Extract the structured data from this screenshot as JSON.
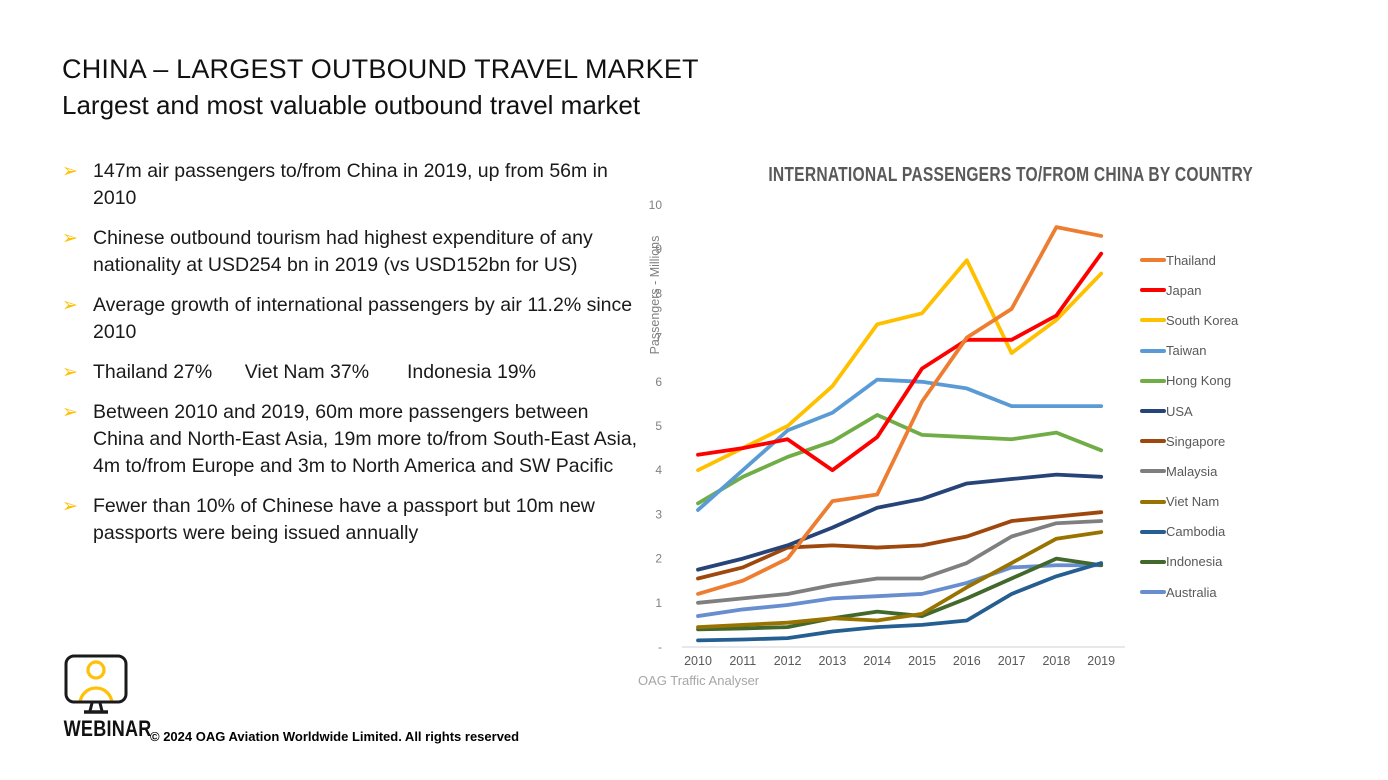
{
  "header": {
    "title": "CHINA – LARGEST OUTBOUND TRAVEL MARKET",
    "subtitle": "Largest and most valuable outbound travel market"
  },
  "bullet_marker": "➢",
  "bullets": [
    "147m air passengers to/from China in 2019, up from 56m in 2010",
    "Chinese outbound tourism had highest expenditure of any nationality at USD254 bn in 2019 (vs USD152bn for US)",
    "Average growth of international passengers by air 11.2% since 2010",
    "Thailand 27%      Viet Nam 37%       Indonesia 19%",
    "Between 2010 and 2019, 60m more passengers between China and North-East Asia, 19m more to/from South-East Asia, 4m to/from Europe and 3m to North America and SW Pacific",
    "Fewer than 10% of Chinese have a passport but 10m new passports were being issued annually"
  ],
  "chart": {
    "source": "OAG Traffic Analyser"
  },
  "chart_data": {
    "type": "line",
    "title": "INTERNATIONAL PASSENGERS TO/FROM CHINA BY COUNTRY",
    "ylabel": "Passengers - Millions",
    "xlabel": "",
    "x": [
      2010,
      2011,
      2012,
      2013,
      2014,
      2015,
      2016,
      2017,
      2018,
      2019
    ],
    "ylim": [
      0,
      10
    ],
    "y_tick_step": 1,
    "zero_tick_label": "-",
    "grid": false,
    "legend_position": "right",
    "axis_color": "#d9d9d9",
    "tick_color": "#808080",
    "x_tick_color": "#595959",
    "series": [
      {
        "name": "Thailand",
        "color": "#ED7D31",
        "values": [
          1.2,
          1.5,
          2.0,
          3.3,
          3.45,
          5.55,
          7.0,
          7.65,
          9.5,
          9.3
        ]
      },
      {
        "name": "Japan",
        "color": "#FF0000",
        "values": [
          4.35,
          4.5,
          4.7,
          4.0,
          4.75,
          6.3,
          6.95,
          6.95,
          7.5,
          8.9
        ]
      },
      {
        "name": "South Korea",
        "color": "#FFC000",
        "values": [
          4.0,
          4.5,
          5.0,
          5.9,
          7.3,
          7.55,
          8.75,
          6.65,
          7.4,
          8.45
        ]
      },
      {
        "name": "Taiwan",
        "color": "#5B9BD5",
        "values": [
          3.1,
          4.0,
          4.9,
          5.3,
          6.05,
          6.0,
          5.85,
          5.45,
          5.45,
          5.45
        ]
      },
      {
        "name": "Hong Kong",
        "color": "#70AD47",
        "values": [
          3.25,
          3.85,
          4.3,
          4.65,
          5.25,
          4.8,
          4.75,
          4.7,
          4.85,
          4.45
        ]
      },
      {
        "name": "USA",
        "color": "#264478",
        "values": [
          1.75,
          2.0,
          2.3,
          2.7,
          3.15,
          3.35,
          3.7,
          3.8,
          3.9,
          3.85
        ]
      },
      {
        "name": "Singapore",
        "color": "#9E480E",
        "values": [
          1.55,
          1.8,
          2.25,
          2.3,
          2.25,
          2.3,
          2.5,
          2.85,
          2.95,
          3.05
        ]
      },
      {
        "name": "Malaysia",
        "color": "#7F7F7F",
        "values": [
          1.0,
          1.1,
          1.2,
          1.4,
          1.55,
          1.55,
          1.9,
          2.5,
          2.8,
          2.85
        ]
      },
      {
        "name": "Viet Nam",
        "color": "#997300",
        "values": [
          0.45,
          0.5,
          0.55,
          0.65,
          0.6,
          0.75,
          1.35,
          1.9,
          2.45,
          2.6
        ]
      },
      {
        "name": "Cambodia",
        "color": "#255E91",
        "values": [
          0.15,
          0.17,
          0.2,
          0.35,
          0.45,
          0.5,
          0.6,
          1.2,
          1.6,
          1.9
        ]
      },
      {
        "name": "Indonesia",
        "color": "#43682B",
        "values": [
          0.4,
          0.42,
          0.45,
          0.65,
          0.8,
          0.7,
          1.1,
          1.55,
          2.0,
          1.85
        ]
      },
      {
        "name": "Australia",
        "color": "#698ED0",
        "values": [
          0.7,
          0.85,
          0.95,
          1.1,
          1.15,
          1.2,
          1.45,
          1.8,
          1.85,
          1.85
        ]
      }
    ]
  },
  "footer": {
    "brand": "WEBINAR",
    "copyright": "© 2024 OAG Aviation Worldwide Limited. All rights reserved"
  }
}
